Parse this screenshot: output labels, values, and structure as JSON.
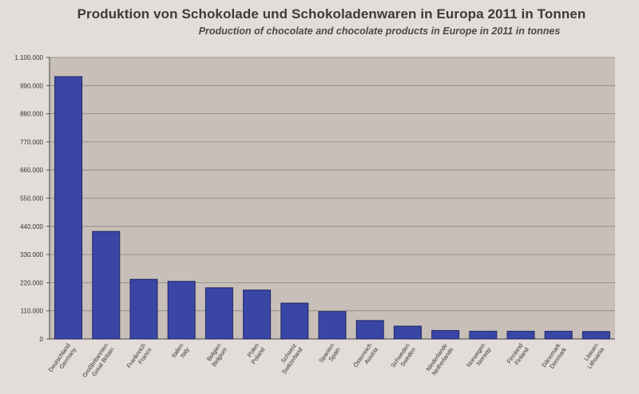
{
  "chart_data": {
    "type": "bar",
    "title": "Produktion von Schokolade und Schokoladenwaren in Europa 2011 in Tonnen",
    "subtitle": "Production of chocolate and chocolate products in Europe in 2011 in tonnes",
    "xlabel": "",
    "ylabel": "",
    "ylim": [
      0,
      1100000
    ],
    "grid": true,
    "legend": "none",
    "yticks": [
      {
        "value": 0,
        "label": "0"
      },
      {
        "value": 110000,
        "label": "110.000"
      },
      {
        "value": 220000,
        "label": "220.000"
      },
      {
        "value": 330000,
        "label": "330.000"
      },
      {
        "value": 440000,
        "label": "440.000"
      },
      {
        "value": 550000,
        "label": "550.000"
      },
      {
        "value": 660000,
        "label": "660.000"
      },
      {
        "value": 770000,
        "label": "770.000"
      },
      {
        "value": 880000,
        "label": "880.000"
      },
      {
        "value": 990000,
        "label": "990.000"
      },
      {
        "value": 1100000,
        "label": "1.100.000"
      }
    ],
    "categories": [
      {
        "de": "Deutschland",
        "en": "Germany"
      },
      {
        "de": "Großbritannien",
        "en": "Great Britain"
      },
      {
        "de": "Frankreich",
        "en": "France"
      },
      {
        "de": "Italien",
        "en": "Italy"
      },
      {
        "de": "Belgien",
        "en": "Belgium"
      },
      {
        "de": "Polen",
        "en": "Poland"
      },
      {
        "de": "Schweiz",
        "en": "Switzerland"
      },
      {
        "de": "Spanien",
        "en": "Spain"
      },
      {
        "de": "Österreich",
        "en": "Austria"
      },
      {
        "de": "Schweden",
        "en": "Sweden"
      },
      {
        "de": "Niederlande",
        "en": "Netherlands"
      },
      {
        "de": "Norwegen",
        "en": "Norway"
      },
      {
        "de": "Finnland",
        "en": "Finland"
      },
      {
        "de": "Dänemark",
        "en": "Denmark"
      },
      {
        "de": "Litauen",
        "en": "Lithuania"
      }
    ],
    "values": [
      1025000,
      420000,
      233000,
      225000,
      200000,
      191000,
      140000,
      107000,
      72000,
      50000,
      33000,
      30000,
      30000,
      30000,
      29000
    ],
    "colors": {
      "bar": "#3a46a4",
      "bar_edge": "#1e2466",
      "plot_bg": "#c7bfb8",
      "grid": "#8a8580",
      "text": "#333333"
    }
  }
}
